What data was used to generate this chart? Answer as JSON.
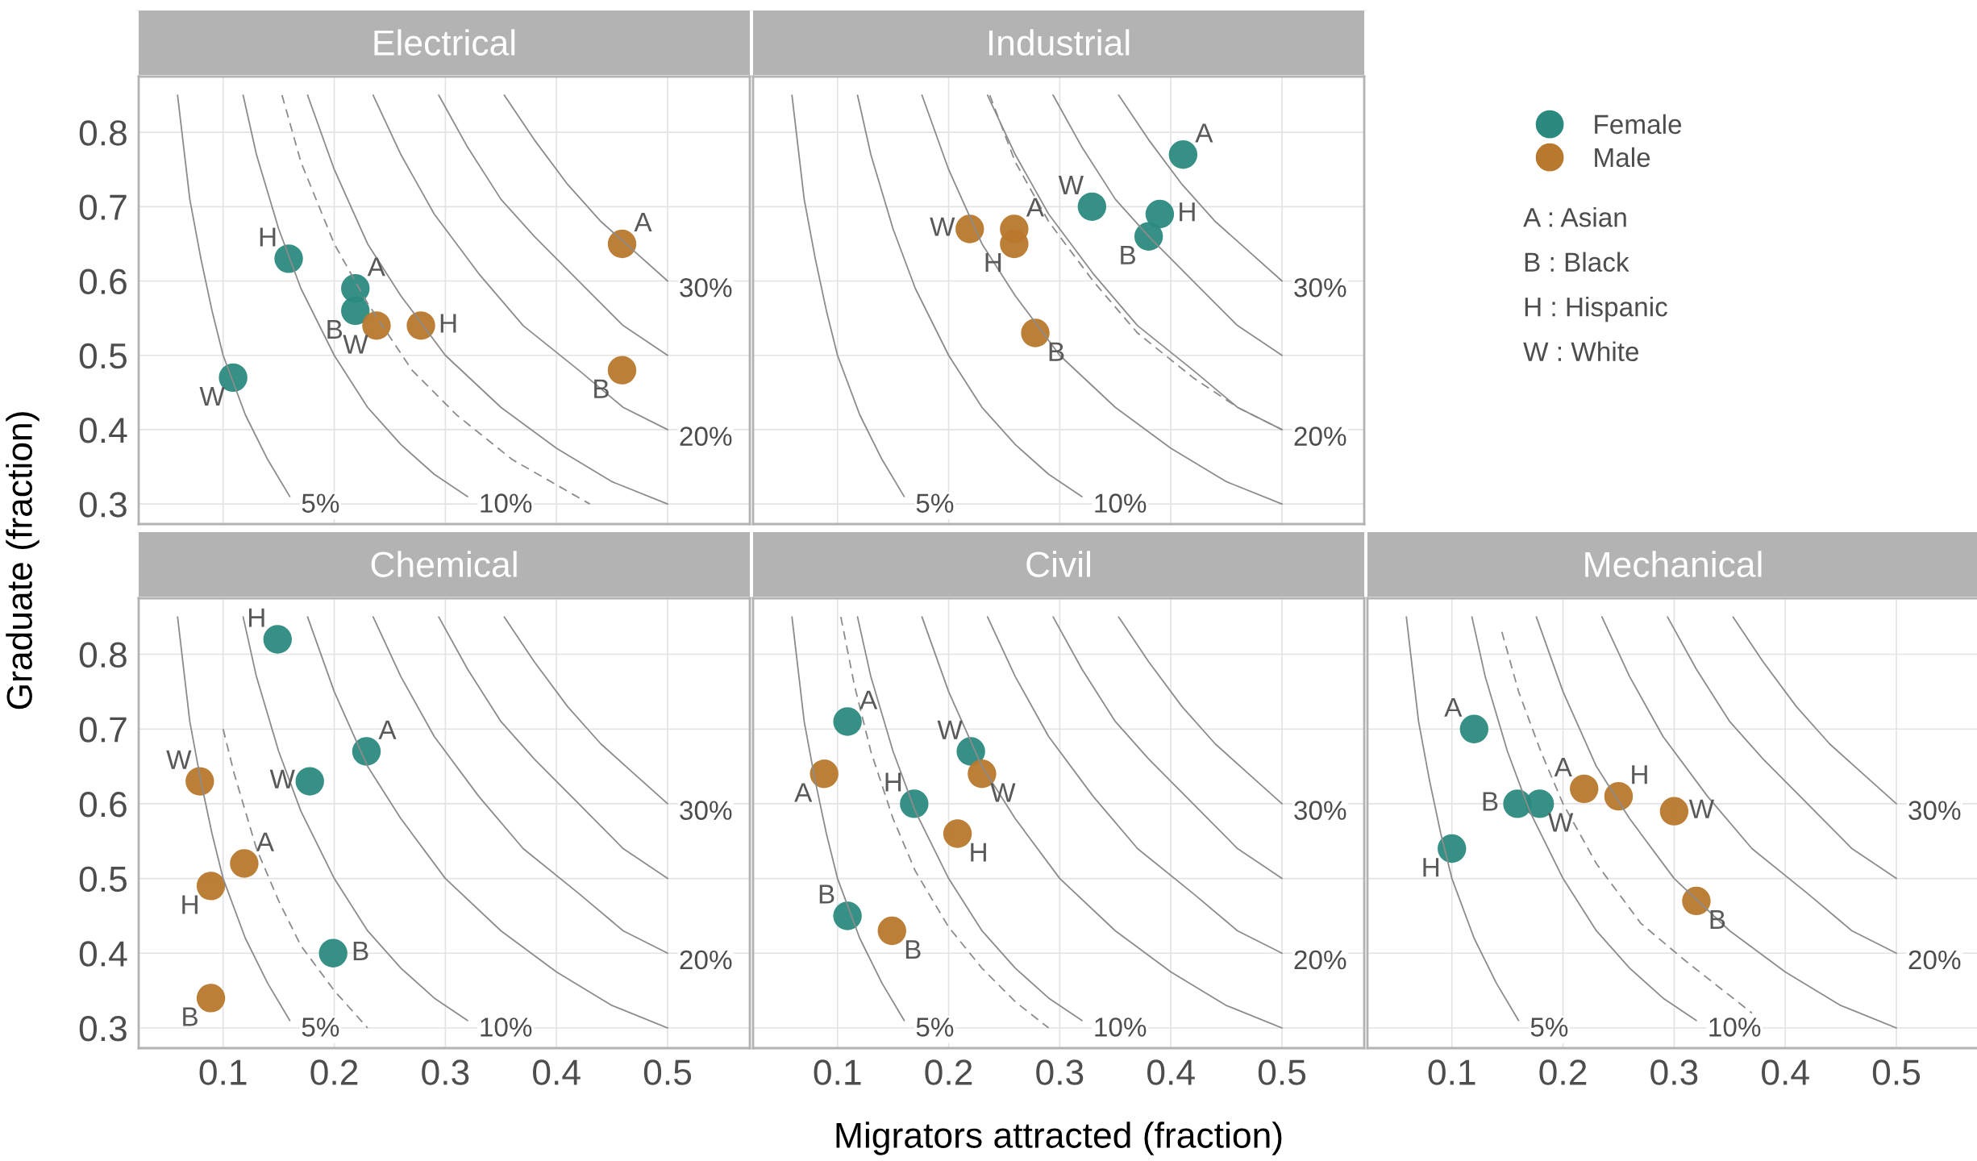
{
  "chart_data": [
    {
      "type": "scatter",
      "title": "Electrical",
      "ylabel": "Graduate (fraction)",
      "xlim": [
        0.024,
        0.574
      ],
      "ylim": [
        0.273,
        0.875
      ],
      "xticks": [
        0.1,
        0.2,
        0.3,
        0.4,
        0.5
      ],
      "yticks": [
        0.3,
        0.4,
        0.5,
        0.6,
        0.7,
        0.8
      ],
      "grid": true,
      "tick_labels": "y",
      "series": [
        {
          "color": "#2b8a80",
          "marker": "circle",
          "x": [
            0.159,
            0.219,
            0.219,
            0.109
          ],
          "values": [
            0.63,
            0.59,
            0.56,
            0.47
          ],
          "value_labels": [
            "H",
            "A",
            "B",
            "W"
          ]
        },
        {
          "color": "#b8782d",
          "marker": "circle",
          "x": [
            0.459,
            0.459,
            0.238,
            0.278
          ],
          "values": [
            0.65,
            0.48,
            0.54,
            0.54
          ],
          "value_labels": [
            "A",
            "B",
            "W",
            "H"
          ]
        },
        {
          "type": "line",
          "name": "5%",
          "color": "#8c8c8c",
          "line_style": "solid",
          "x": [
            0.059,
            0.07,
            0.08,
            0.09,
            0.1,
            0.12,
            0.14,
            0.16
          ],
          "values": [
            0.85,
            0.71,
            0.63,
            0.56,
            0.5,
            0.42,
            0.36,
            0.31
          ]
        },
        {
          "type": "line",
          "name": "10%",
          "color": "#8c8c8c",
          "line_style": "solid",
          "x": [
            0.118,
            0.13,
            0.15,
            0.17,
            0.2,
            0.23,
            0.26,
            0.29,
            0.32
          ],
          "values": [
            0.85,
            0.77,
            0.67,
            0.59,
            0.5,
            0.43,
            0.38,
            0.34,
            0.31
          ]
        },
        {
          "type": "line",
          "color": "#8c8c8c",
          "line_style": "solid",
          "x": [
            0.176,
            0.2,
            0.23,
            0.26,
            0.3,
            0.35,
            0.4,
            0.45,
            0.5
          ],
          "values": [
            0.85,
            0.75,
            0.65,
            0.58,
            0.5,
            0.43,
            0.375,
            0.33,
            0.3
          ]
        },
        {
          "type": "line",
          "name": "20%",
          "color": "#8c8c8c",
          "line_style": "solid",
          "x": [
            0.235,
            0.26,
            0.29,
            0.33,
            0.37,
            0.42,
            0.46,
            0.5
          ],
          "values": [
            0.85,
            0.77,
            0.69,
            0.61,
            0.54,
            0.48,
            0.43,
            0.4
          ]
        },
        {
          "type": "line",
          "color": "#8c8c8c",
          "line_style": "solid",
          "x": [
            0.294,
            0.32,
            0.35,
            0.38,
            0.42,
            0.46,
            0.5
          ],
          "values": [
            0.85,
            0.78,
            0.71,
            0.66,
            0.6,
            0.54,
            0.5
          ]
        },
        {
          "type": "line",
          "name": "30%",
          "color": "#8c8c8c",
          "line_style": "solid",
          "x": [
            0.353,
            0.38,
            0.41,
            0.44,
            0.47,
            0.5
          ],
          "values": [
            0.85,
            0.79,
            0.73,
            0.68,
            0.64,
            0.6
          ]
        },
        {
          "type": "line",
          "color": "#8c8c8c",
          "line_style": "dashed",
          "x": [
            0.153,
            0.17,
            0.2,
            0.23,
            0.27,
            0.31,
            0.36,
            0.43
          ],
          "values": [
            0.85,
            0.76,
            0.65,
            0.57,
            0.48,
            0.42,
            0.36,
            0.3
          ]
        }
      ]
    },
    {
      "type": "scatter",
      "title": "Industrial",
      "xlim": [
        0.024,
        0.574
      ],
      "ylim": [
        0.273,
        0.875
      ],
      "xticks": [
        0.1,
        0.2,
        0.3,
        0.4,
        0.5
      ],
      "yticks": [
        0.3,
        0.4,
        0.5,
        0.6,
        0.7,
        0.8
      ],
      "grid": true,
      "tick_labels": false,
      "legend": "right",
      "series": [
        {
          "name": "Female",
          "color": "#2b8a80",
          "marker": "circle",
          "x": [
            0.411,
            0.39,
            0.38,
            0.329
          ],
          "values": [
            0.77,
            0.69,
            0.66,
            0.7
          ],
          "value_labels": [
            "A",
            "H",
            "B",
            "W"
          ]
        },
        {
          "name": "Male",
          "color": "#b8782d",
          "marker": "circle",
          "x": [
            0.259,
            0.259,
            0.219,
            0.278
          ],
          "values": [
            0.67,
            0.65,
            0.67,
            0.53
          ],
          "value_labels": [
            "A",
            "H",
            "W",
            "B"
          ]
        },
        {
          "type": "line",
          "name": "5%",
          "color": "#8c8c8c",
          "line_style": "solid",
          "x": [
            0.059,
            0.07,
            0.08,
            0.09,
            0.1,
            0.12,
            0.14,
            0.16
          ],
          "values": [
            0.85,
            0.71,
            0.63,
            0.56,
            0.5,
            0.42,
            0.36,
            0.31
          ]
        },
        {
          "type": "line",
          "name": "10%",
          "color": "#8c8c8c",
          "line_style": "solid",
          "x": [
            0.118,
            0.13,
            0.15,
            0.17,
            0.2,
            0.23,
            0.26,
            0.29,
            0.32
          ],
          "values": [
            0.85,
            0.77,
            0.67,
            0.59,
            0.5,
            0.43,
            0.38,
            0.34,
            0.31
          ]
        },
        {
          "type": "line",
          "color": "#8c8c8c",
          "line_style": "solid",
          "x": [
            0.176,
            0.2,
            0.23,
            0.26,
            0.3,
            0.35,
            0.4,
            0.45,
            0.5
          ],
          "values": [
            0.85,
            0.75,
            0.65,
            0.58,
            0.5,
            0.43,
            0.375,
            0.33,
            0.3
          ]
        },
        {
          "type": "line",
          "name": "20%",
          "color": "#8c8c8c",
          "line_style": "solid",
          "x": [
            0.235,
            0.26,
            0.29,
            0.33,
            0.37,
            0.42,
            0.46,
            0.5
          ],
          "values": [
            0.85,
            0.77,
            0.69,
            0.61,
            0.54,
            0.48,
            0.43,
            0.4
          ]
        },
        {
          "type": "line",
          "color": "#8c8c8c",
          "line_style": "solid",
          "x": [
            0.294,
            0.32,
            0.35,
            0.38,
            0.42,
            0.46,
            0.5
          ],
          "values": [
            0.85,
            0.78,
            0.71,
            0.66,
            0.6,
            0.54,
            0.5
          ]
        },
        {
          "type": "line",
          "name": "30%",
          "color": "#8c8c8c",
          "line_style": "solid",
          "x": [
            0.353,
            0.38,
            0.41,
            0.44,
            0.47,
            0.5
          ],
          "values": [
            0.85,
            0.79,
            0.73,
            0.68,
            0.64,
            0.6
          ]
        },
        {
          "type": "line",
          "color": "#8c8c8c",
          "line_style": "dashed",
          "x": [
            0.237,
            0.26,
            0.29,
            0.33,
            0.37,
            0.42,
            0.46,
            0.5
          ],
          "values": [
            0.85,
            0.76,
            0.68,
            0.6,
            0.53,
            0.47,
            0.43,
            0.4
          ]
        }
      ],
      "annotations": [
        "A : Asian",
        "B : Black",
        "H : Hispanic",
        "W : White"
      ]
    },
    {
      "type": "scatter",
      "title": "Chemical",
      "xlim": [
        0.024,
        0.574
      ],
      "ylim": [
        0.273,
        0.875
      ],
      "xticks": [
        0.1,
        0.2,
        0.3,
        0.4,
        0.5
      ],
      "yticks": [
        0.3,
        0.4,
        0.5,
        0.6,
        0.7,
        0.8
      ],
      "grid": true,
      "series": [
        {
          "color": "#2b8a80",
          "marker": "circle",
          "x": [
            0.149,
            0.229,
            0.178,
            0.199
          ],
          "values": [
            0.82,
            0.67,
            0.63,
            0.4
          ],
          "value_labels": [
            "H",
            "A",
            "W",
            "B"
          ]
        },
        {
          "color": "#b8782d",
          "marker": "circle",
          "x": [
            0.079,
            0.119,
            0.089,
            0.089
          ],
          "values": [
            0.63,
            0.52,
            0.49,
            0.34
          ],
          "value_labels": [
            "W",
            "A",
            "H",
            "B"
          ]
        },
        {
          "type": "line",
          "name": "5%",
          "color": "#8c8c8c",
          "line_style": "solid",
          "x": [
            0.059,
            0.07,
            0.08,
            0.09,
            0.1,
            0.12,
            0.14,
            0.16
          ],
          "values": [
            0.85,
            0.71,
            0.63,
            0.56,
            0.5,
            0.42,
            0.36,
            0.31
          ]
        },
        {
          "type": "line",
          "name": "10%",
          "color": "#8c8c8c",
          "line_style": "solid",
          "x": [
            0.118,
            0.13,
            0.15,
            0.17,
            0.2,
            0.23,
            0.26,
            0.29,
            0.32
          ],
          "values": [
            0.85,
            0.77,
            0.67,
            0.59,
            0.5,
            0.43,
            0.38,
            0.34,
            0.31
          ]
        },
        {
          "type": "line",
          "color": "#8c8c8c",
          "line_style": "solid",
          "x": [
            0.176,
            0.2,
            0.23,
            0.26,
            0.3,
            0.35,
            0.4,
            0.45,
            0.5
          ],
          "values": [
            0.85,
            0.75,
            0.65,
            0.58,
            0.5,
            0.43,
            0.375,
            0.33,
            0.3
          ]
        },
        {
          "type": "line",
          "name": "20%",
          "color": "#8c8c8c",
          "line_style": "solid",
          "x": [
            0.235,
            0.26,
            0.29,
            0.33,
            0.37,
            0.42,
            0.46,
            0.5
          ],
          "values": [
            0.85,
            0.77,
            0.69,
            0.61,
            0.54,
            0.48,
            0.43,
            0.4
          ]
        },
        {
          "type": "line",
          "color": "#8c8c8c",
          "line_style": "solid",
          "x": [
            0.294,
            0.32,
            0.35,
            0.38,
            0.42,
            0.46,
            0.5
          ],
          "values": [
            0.85,
            0.78,
            0.71,
            0.66,
            0.6,
            0.54,
            0.5
          ]
        },
        {
          "type": "line",
          "name": "30%",
          "color": "#8c8c8c",
          "line_style": "solid",
          "x": [
            0.353,
            0.38,
            0.41,
            0.44,
            0.47,
            0.5
          ],
          "values": [
            0.85,
            0.79,
            0.73,
            0.68,
            0.64,
            0.6
          ]
        },
        {
          "type": "line",
          "color": "#8c8c8c",
          "line_style": "dashed",
          "x": [
            0.1,
            0.11,
            0.13,
            0.15,
            0.17,
            0.2,
            0.23
          ],
          "values": [
            0.7,
            0.64,
            0.54,
            0.47,
            0.41,
            0.35,
            0.3
          ]
        }
      ]
    },
    {
      "type": "scatter",
      "title": "Civil",
      "xlabel": "Migrators attracted (fraction)",
      "xlim": [
        0.024,
        0.574
      ],
      "ylim": [
        0.273,
        0.875
      ],
      "xticks": [
        0.1,
        0.2,
        0.3,
        0.4,
        0.5
      ],
      "yticks": [
        0.3,
        0.4,
        0.5,
        0.6,
        0.7,
        0.8
      ],
      "grid": true,
      "tick_labels": "x",
      "series": [
        {
          "color": "#2b8a80",
          "marker": "circle",
          "x": [
            0.109,
            0.22,
            0.169,
            0.109
          ],
          "values": [
            0.71,
            0.67,
            0.6,
            0.45
          ],
          "value_labels": [
            "A",
            "W",
            "H",
            "B"
          ]
        },
        {
          "color": "#b8782d",
          "marker": "circle",
          "x": [
            0.088,
            0.23,
            0.208,
            0.149
          ],
          "values": [
            0.64,
            0.64,
            0.56,
            0.43
          ],
          "value_labels": [
            "A",
            "W",
            "H",
            "B"
          ]
        },
        {
          "type": "line",
          "name": "5%",
          "color": "#8c8c8c",
          "line_style": "solid",
          "x": [
            0.059,
            0.07,
            0.08,
            0.09,
            0.1,
            0.12,
            0.14,
            0.16
          ],
          "values": [
            0.85,
            0.71,
            0.63,
            0.56,
            0.5,
            0.42,
            0.36,
            0.31
          ]
        },
        {
          "type": "line",
          "name": "10%",
          "color": "#8c8c8c",
          "line_style": "solid",
          "x": [
            0.118,
            0.13,
            0.15,
            0.17,
            0.2,
            0.23,
            0.26,
            0.29,
            0.32
          ],
          "values": [
            0.85,
            0.77,
            0.67,
            0.59,
            0.5,
            0.43,
            0.38,
            0.34,
            0.31
          ]
        },
        {
          "type": "line",
          "color": "#8c8c8c",
          "line_style": "solid",
          "x": [
            0.176,
            0.2,
            0.23,
            0.26,
            0.3,
            0.35,
            0.4,
            0.45,
            0.5
          ],
          "values": [
            0.85,
            0.75,
            0.65,
            0.58,
            0.5,
            0.43,
            0.375,
            0.33,
            0.3
          ]
        },
        {
          "type": "line",
          "name": "20%",
          "color": "#8c8c8c",
          "line_style": "solid",
          "x": [
            0.235,
            0.26,
            0.29,
            0.33,
            0.37,
            0.42,
            0.46,
            0.5
          ],
          "values": [
            0.85,
            0.77,
            0.69,
            0.61,
            0.54,
            0.48,
            0.43,
            0.4
          ]
        },
        {
          "type": "line",
          "color": "#8c8c8c",
          "line_style": "solid",
          "x": [
            0.294,
            0.32,
            0.35,
            0.38,
            0.42,
            0.46,
            0.5
          ],
          "values": [
            0.85,
            0.78,
            0.71,
            0.66,
            0.6,
            0.54,
            0.5
          ]
        },
        {
          "type": "line",
          "name": "30%",
          "color": "#8c8c8c",
          "line_style": "solid",
          "x": [
            0.353,
            0.38,
            0.41,
            0.44,
            0.47,
            0.5
          ],
          "values": [
            0.85,
            0.79,
            0.73,
            0.68,
            0.64,
            0.6
          ]
        },
        {
          "type": "line",
          "color": "#8c8c8c",
          "line_style": "dashed",
          "x": [
            0.103,
            0.115,
            0.13,
            0.15,
            0.17,
            0.2,
            0.23,
            0.26,
            0.29
          ],
          "values": [
            0.85,
            0.76,
            0.67,
            0.58,
            0.51,
            0.435,
            0.38,
            0.335,
            0.3
          ]
        }
      ]
    },
    {
      "type": "scatter",
      "title": "Mechanical",
      "xlim": [
        0.024,
        0.574
      ],
      "ylim": [
        0.273,
        0.875
      ],
      "xticks": [
        0.1,
        0.2,
        0.3,
        0.4,
        0.5
      ],
      "yticks": [
        0.3,
        0.4,
        0.5,
        0.6,
        0.7,
        0.8
      ],
      "grid": true,
      "tick_labels": "x",
      "series": [
        {
          "color": "#2b8a80",
          "marker": "circle",
          "x": [
            0.12,
            0.159,
            0.179,
            0.1
          ],
          "values": [
            0.7,
            0.6,
            0.6,
            0.54
          ],
          "value_labels": [
            "A",
            "B",
            "W",
            "H"
          ]
        },
        {
          "color": "#b8782d",
          "marker": "circle",
          "x": [
            0.219,
            0.25,
            0.3,
            0.32
          ],
          "values": [
            0.62,
            0.61,
            0.59,
            0.47
          ],
          "value_labels": [
            "A",
            "H",
            "W",
            "B"
          ]
        },
        {
          "type": "line",
          "name": "5%",
          "color": "#8c8c8c",
          "line_style": "solid",
          "x": [
            0.059,
            0.07,
            0.08,
            0.09,
            0.1,
            0.12,
            0.14,
            0.16
          ],
          "values": [
            0.85,
            0.71,
            0.63,
            0.56,
            0.5,
            0.42,
            0.36,
            0.31
          ]
        },
        {
          "type": "line",
          "name": "10%",
          "color": "#8c8c8c",
          "line_style": "solid",
          "x": [
            0.118,
            0.13,
            0.15,
            0.17,
            0.2,
            0.23,
            0.26,
            0.29,
            0.32
          ],
          "values": [
            0.85,
            0.77,
            0.67,
            0.59,
            0.5,
            0.43,
            0.38,
            0.34,
            0.31
          ]
        },
        {
          "type": "line",
          "color": "#8c8c8c",
          "line_style": "solid",
          "x": [
            0.176,
            0.2,
            0.23,
            0.26,
            0.3,
            0.35,
            0.4,
            0.45,
            0.5
          ],
          "values": [
            0.85,
            0.75,
            0.65,
            0.58,
            0.5,
            0.43,
            0.375,
            0.33,
            0.3
          ]
        },
        {
          "type": "line",
          "name": "20%",
          "color": "#8c8c8c",
          "line_style": "solid",
          "x": [
            0.235,
            0.26,
            0.29,
            0.33,
            0.37,
            0.42,
            0.46,
            0.5
          ],
          "values": [
            0.85,
            0.77,
            0.69,
            0.61,
            0.54,
            0.48,
            0.43,
            0.4
          ]
        },
        {
          "type": "line",
          "color": "#8c8c8c",
          "line_style": "solid",
          "x": [
            0.294,
            0.32,
            0.35,
            0.38,
            0.42,
            0.46,
            0.5
          ],
          "values": [
            0.85,
            0.78,
            0.71,
            0.66,
            0.6,
            0.54,
            0.5
          ]
        },
        {
          "type": "line",
          "name": "30%",
          "color": "#8c8c8c",
          "line_style": "solid",
          "x": [
            0.353,
            0.38,
            0.41,
            0.44,
            0.47,
            0.5
          ],
          "values": [
            0.85,
            0.79,
            0.73,
            0.68,
            0.64,
            0.6
          ]
        },
        {
          "type": "line",
          "color": "#8c8c8c",
          "line_style": "dashed",
          "x": [
            0.145,
            0.16,
            0.18,
            0.2,
            0.23,
            0.27,
            0.31,
            0.37
          ],
          "values": [
            0.83,
            0.75,
            0.67,
            0.6,
            0.52,
            0.44,
            0.39,
            0.32
          ]
        }
      ]
    }
  ]
}
